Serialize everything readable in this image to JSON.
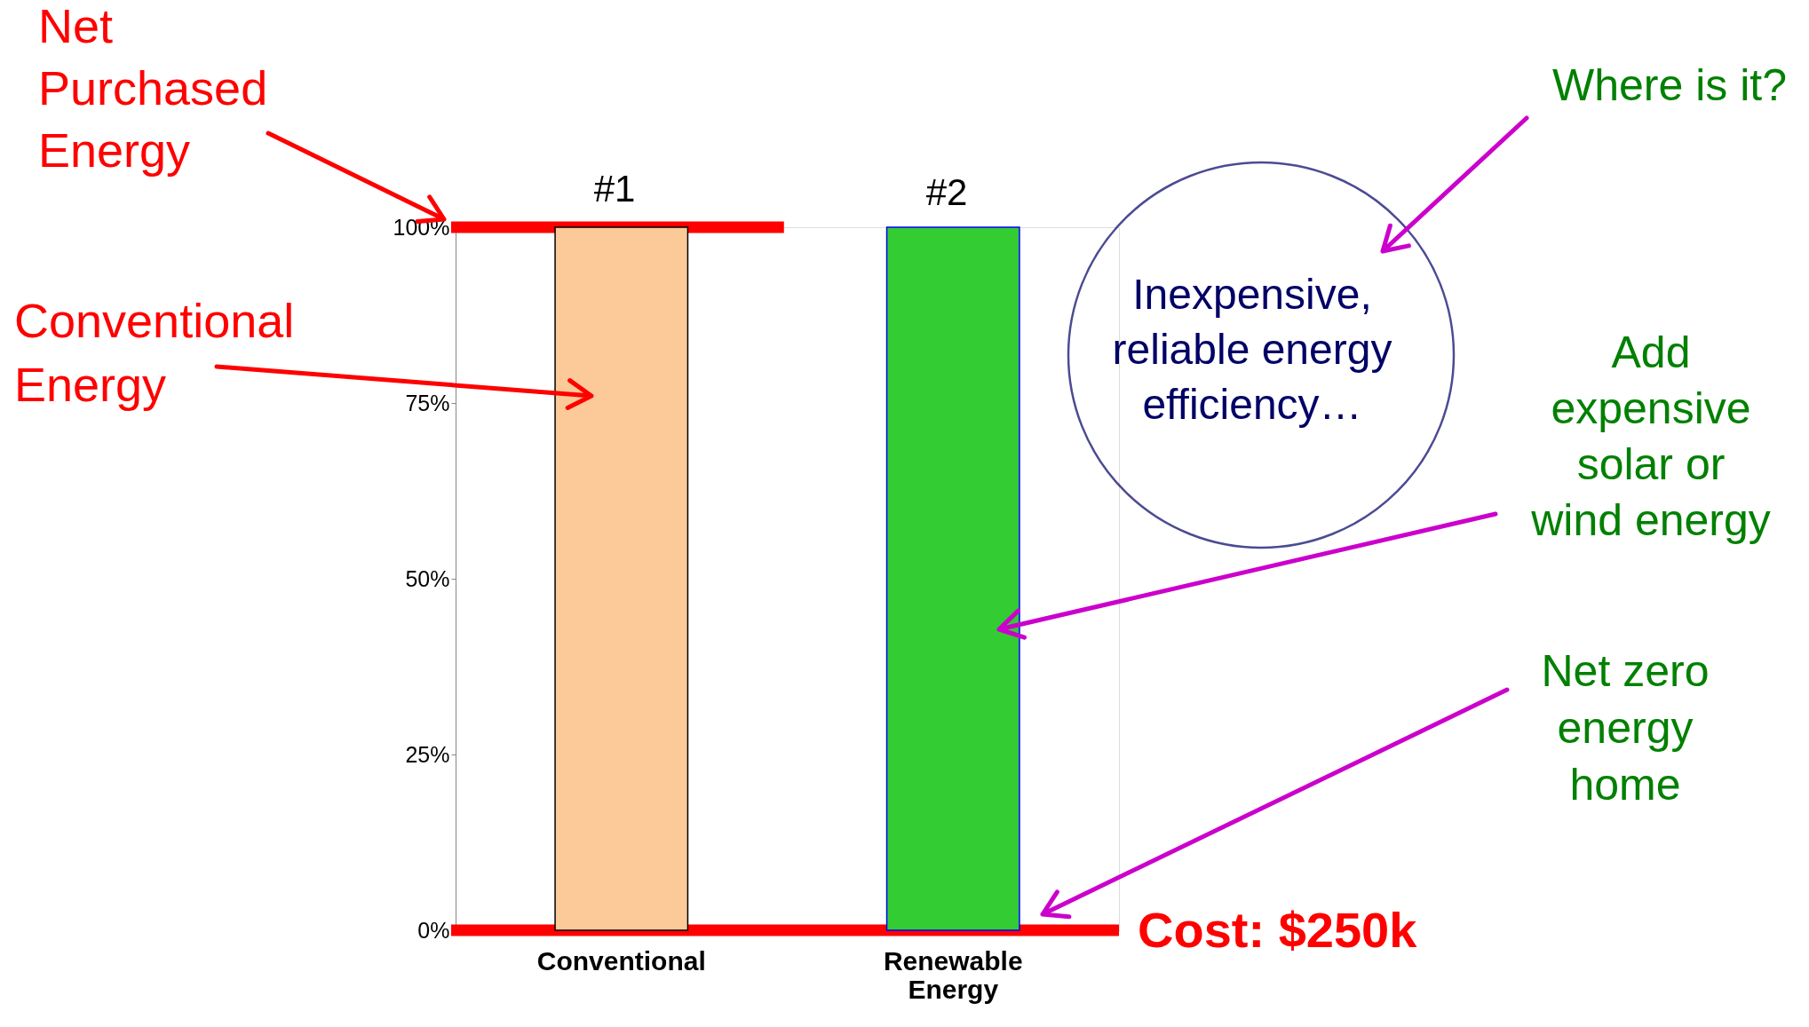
{
  "chart_data": {
    "type": "bar",
    "categories": [
      "Conventional",
      "Renewable Energy"
    ],
    "values": [
      100,
      100
    ],
    "colors": [
      "#fcc999",
      "#33cc33"
    ],
    "ylim": [
      0,
      100
    ],
    "yticks": [
      {
        "value": 0,
        "label": "0%"
      },
      {
        "value": 25,
        "label": "25%"
      },
      {
        "value": 50,
        "label": "50%"
      },
      {
        "value": 75,
        "label": "75%"
      },
      {
        "value": 100,
        "label": "100%"
      }
    ],
    "grid": false,
    "ref_lines": [
      {
        "axis": "y",
        "value": 100,
        "color": "#ff0000"
      },
      {
        "axis": "y",
        "value": 0,
        "color": "#ff0000"
      }
    ],
    "annotations": [
      "#1",
      "#2",
      "Net Purchased Energy",
      "Conventional Energy",
      "Where is it?",
      "Inexpensive, reliable energy efficiency…",
      "Add expensive solar or wind energy",
      "Net zero energy home",
      "Cost:  $250k"
    ]
  }
}
